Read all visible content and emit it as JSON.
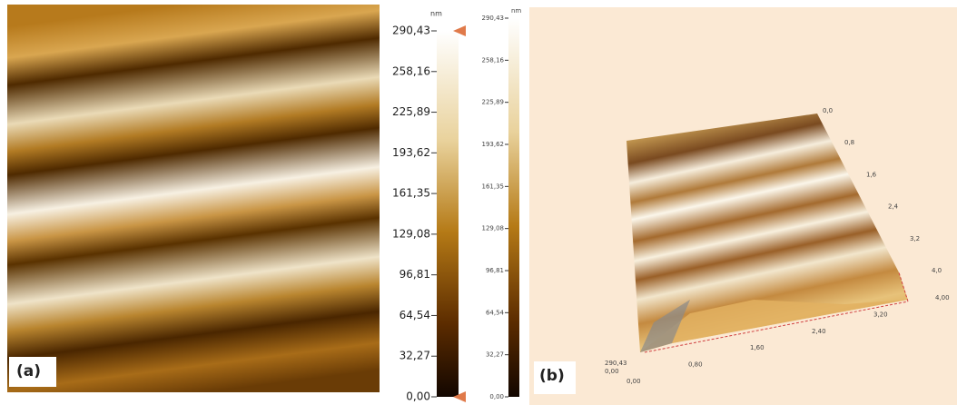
{
  "panel_a": {
    "label": "(a)",
    "colorbar": {
      "unit": "nm",
      "ticks": [
        "290,43",
        "258,16",
        "225,89",
        "193,62",
        "161,35",
        "129,08",
        "96,81",
        "64,54",
        "32,27",
        "0,00"
      ]
    }
  },
  "colorbar_small": {
    "unit": "nm",
    "ticks": [
      "290,43",
      "258,16",
      "225,89",
      "193,62",
      "161,35",
      "129,08",
      "96,81",
      "64,54",
      "32,27",
      "0,00"
    ]
  },
  "panel_b": {
    "label": "(b)",
    "x_ticks": [
      "0,00",
      "0,80",
      "1,60",
      "2,40",
      "3,20",
      "4,00"
    ],
    "y_ticks": [
      "0,0",
      "0,8",
      "1,6",
      "2,4",
      "3,2",
      "4,0"
    ],
    "z_ticks": [
      "290,43",
      "0,00"
    ]
  }
}
